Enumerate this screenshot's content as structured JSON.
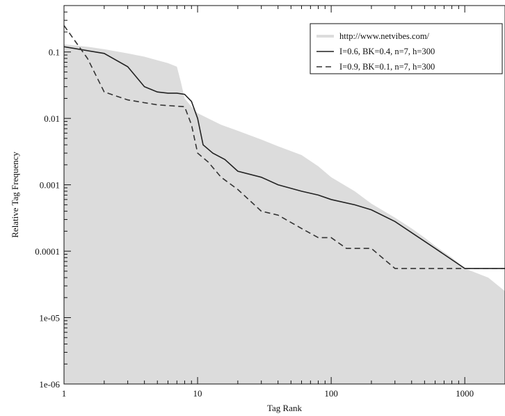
{
  "chart_data": {
    "type": "line",
    "title": "",
    "xlabel": "Tag Rank",
    "ylabel": "Relative Tag Frequency",
    "x_scale": "log",
    "y_scale": "log",
    "xlim": [
      1,
      2000
    ],
    "ylim": [
      1e-06,
      0.5
    ],
    "x_ticks": [
      {
        "value": 1,
        "label": "1"
      },
      {
        "value": 10,
        "label": "10"
      },
      {
        "value": 100,
        "label": "100"
      },
      {
        "value": 1000,
        "label": "1000"
      }
    ],
    "y_ticks": [
      {
        "value": 1e-06,
        "label": "1e-06"
      },
      {
        "value": 1e-05,
        "label": "1e-05"
      },
      {
        "value": 0.0001,
        "label": "0.0001"
      },
      {
        "value": 0.001,
        "label": "0.001"
      },
      {
        "value": 0.01,
        "label": "0.01"
      },
      {
        "value": 0.1,
        "label": "0.1"
      }
    ],
    "grid": false,
    "legend_position": "top-right",
    "series": [
      {
        "name": "http://www.netvibes.com/",
        "style": "filled-area",
        "color": "#dcdcdc",
        "points": [
          [
            1,
            0.13
          ],
          [
            1.5,
            0.12
          ],
          [
            2,
            0.11
          ],
          [
            3,
            0.095
          ],
          [
            4,
            0.085
          ],
          [
            5,
            0.075
          ],
          [
            6,
            0.068
          ],
          [
            7,
            0.06
          ],
          [
            7.5,
            0.035
          ],
          [
            8,
            0.02
          ],
          [
            9,
            0.015
          ],
          [
            10,
            0.012
          ],
          [
            12,
            0.01
          ],
          [
            15,
            0.008
          ],
          [
            20,
            0.0065
          ],
          [
            30,
            0.0048
          ],
          [
            40,
            0.0038
          ],
          [
            60,
            0.0028
          ],
          [
            80,
            0.0019
          ],
          [
            100,
            0.0013
          ],
          [
            150,
            0.0008
          ],
          [
            200,
            0.00052
          ],
          [
            300,
            0.00032
          ],
          [
            400,
            0.00022
          ],
          [
            500,
            0.00016
          ],
          [
            600,
            0.00012
          ],
          [
            800,
            8e-05
          ],
          [
            1000,
            5.5e-05
          ],
          [
            1500,
            4e-05
          ],
          [
            2000,
            2.5e-05
          ]
        ]
      },
      {
        "name": "I=0.6, BK=0.4, n=7, h=300",
        "style": "solid",
        "color": "#222222",
        "points": [
          [
            1,
            0.12
          ],
          [
            2,
            0.095
          ],
          [
            3,
            0.06
          ],
          [
            4,
            0.03
          ],
          [
            5,
            0.025
          ],
          [
            6,
            0.024
          ],
          [
            7,
            0.024
          ],
          [
            8,
            0.023
          ],
          [
            9,
            0.018
          ],
          [
            10,
            0.01
          ],
          [
            11,
            0.004
          ],
          [
            13,
            0.003
          ],
          [
            16,
            0.0024
          ],
          [
            20,
            0.0016
          ],
          [
            30,
            0.0013
          ],
          [
            40,
            0.001
          ],
          [
            60,
            0.0008
          ],
          [
            80,
            0.0007
          ],
          [
            100,
            0.0006
          ],
          [
            150,
            0.0005
          ],
          [
            200,
            0.00042
          ],
          [
            300,
            0.00028
          ],
          [
            600,
            0.00011
          ],
          [
            1000,
            5.5e-05
          ],
          [
            2000,
            5.5e-05
          ]
        ]
      },
      {
        "name": "I=0.9, BK=0.1, n=7, h=300",
        "style": "dashed",
        "color": "#333333",
        "points": [
          [
            1,
            0.25
          ],
          [
            1.5,
            0.08
          ],
          [
            2,
            0.025
          ],
          [
            3,
            0.019
          ],
          [
            5,
            0.016
          ],
          [
            8,
            0.015
          ],
          [
            9,
            0.008
          ],
          [
            10,
            0.003
          ],
          [
            12,
            0.0022
          ],
          [
            15,
            0.0013
          ],
          [
            20,
            0.00085
          ],
          [
            30,
            0.0004
          ],
          [
            40,
            0.00035
          ],
          [
            60,
            0.00022
          ],
          [
            80,
            0.00016
          ],
          [
            100,
            0.00016
          ],
          [
            130,
            0.00011
          ],
          [
            200,
            0.00011
          ],
          [
            300,
            5.5e-05
          ],
          [
            2000,
            5.5e-05
          ]
        ]
      }
    ]
  }
}
